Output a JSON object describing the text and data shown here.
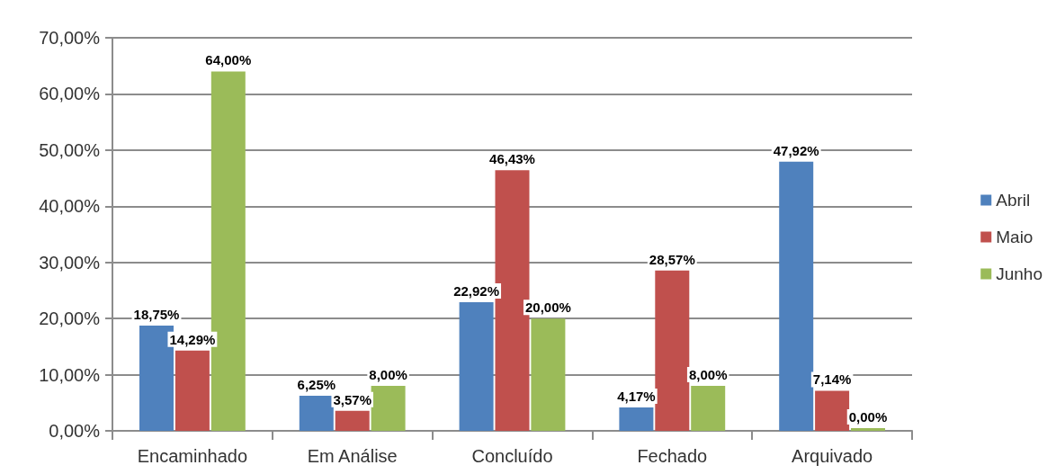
{
  "chart_data": {
    "type": "bar",
    "categories": [
      "Encaminhado",
      "Em Análise",
      "Concluído",
      "Fechado",
      "Arquivado"
    ],
    "series": [
      {
        "name": "Abril",
        "color": "#4f81bd",
        "values": [
          18.75,
          6.25,
          22.92,
          4.17,
          47.92
        ],
        "value_labels": [
          "18,75%",
          "6,25%",
          "22,92%",
          "4,17%",
          "47,92%"
        ]
      },
      {
        "name": "Maio",
        "color": "#c0504d",
        "values": [
          14.29,
          3.57,
          46.43,
          28.57,
          7.14
        ],
        "value_labels": [
          "14,29%",
          "3,57%",
          "46,43%",
          "28,57%",
          "7,14%"
        ]
      },
      {
        "name": "Junho",
        "color": "#9bbb59",
        "values": [
          64.0,
          8.0,
          20.0,
          8.0,
          0.0
        ],
        "value_labels": [
          "64,00%",
          "8,00%",
          "20,00%",
          "8,00%",
          "0,00%"
        ]
      }
    ],
    "ylim": [
      0,
      70
    ],
    "yticks": [
      {
        "value": 0,
        "label": "0,00%"
      },
      {
        "value": 10,
        "label": "10,00%"
      },
      {
        "value": 20,
        "label": "20,00%"
      },
      {
        "value": 30,
        "label": "30,00%"
      },
      {
        "value": 40,
        "label": "40,00%"
      },
      {
        "value": 50,
        "label": "50,00%"
      },
      {
        "value": 60,
        "label": "60,00%"
      },
      {
        "value": 70,
        "label": "70,00%"
      }
    ],
    "grid": "y",
    "legend": "right"
  }
}
